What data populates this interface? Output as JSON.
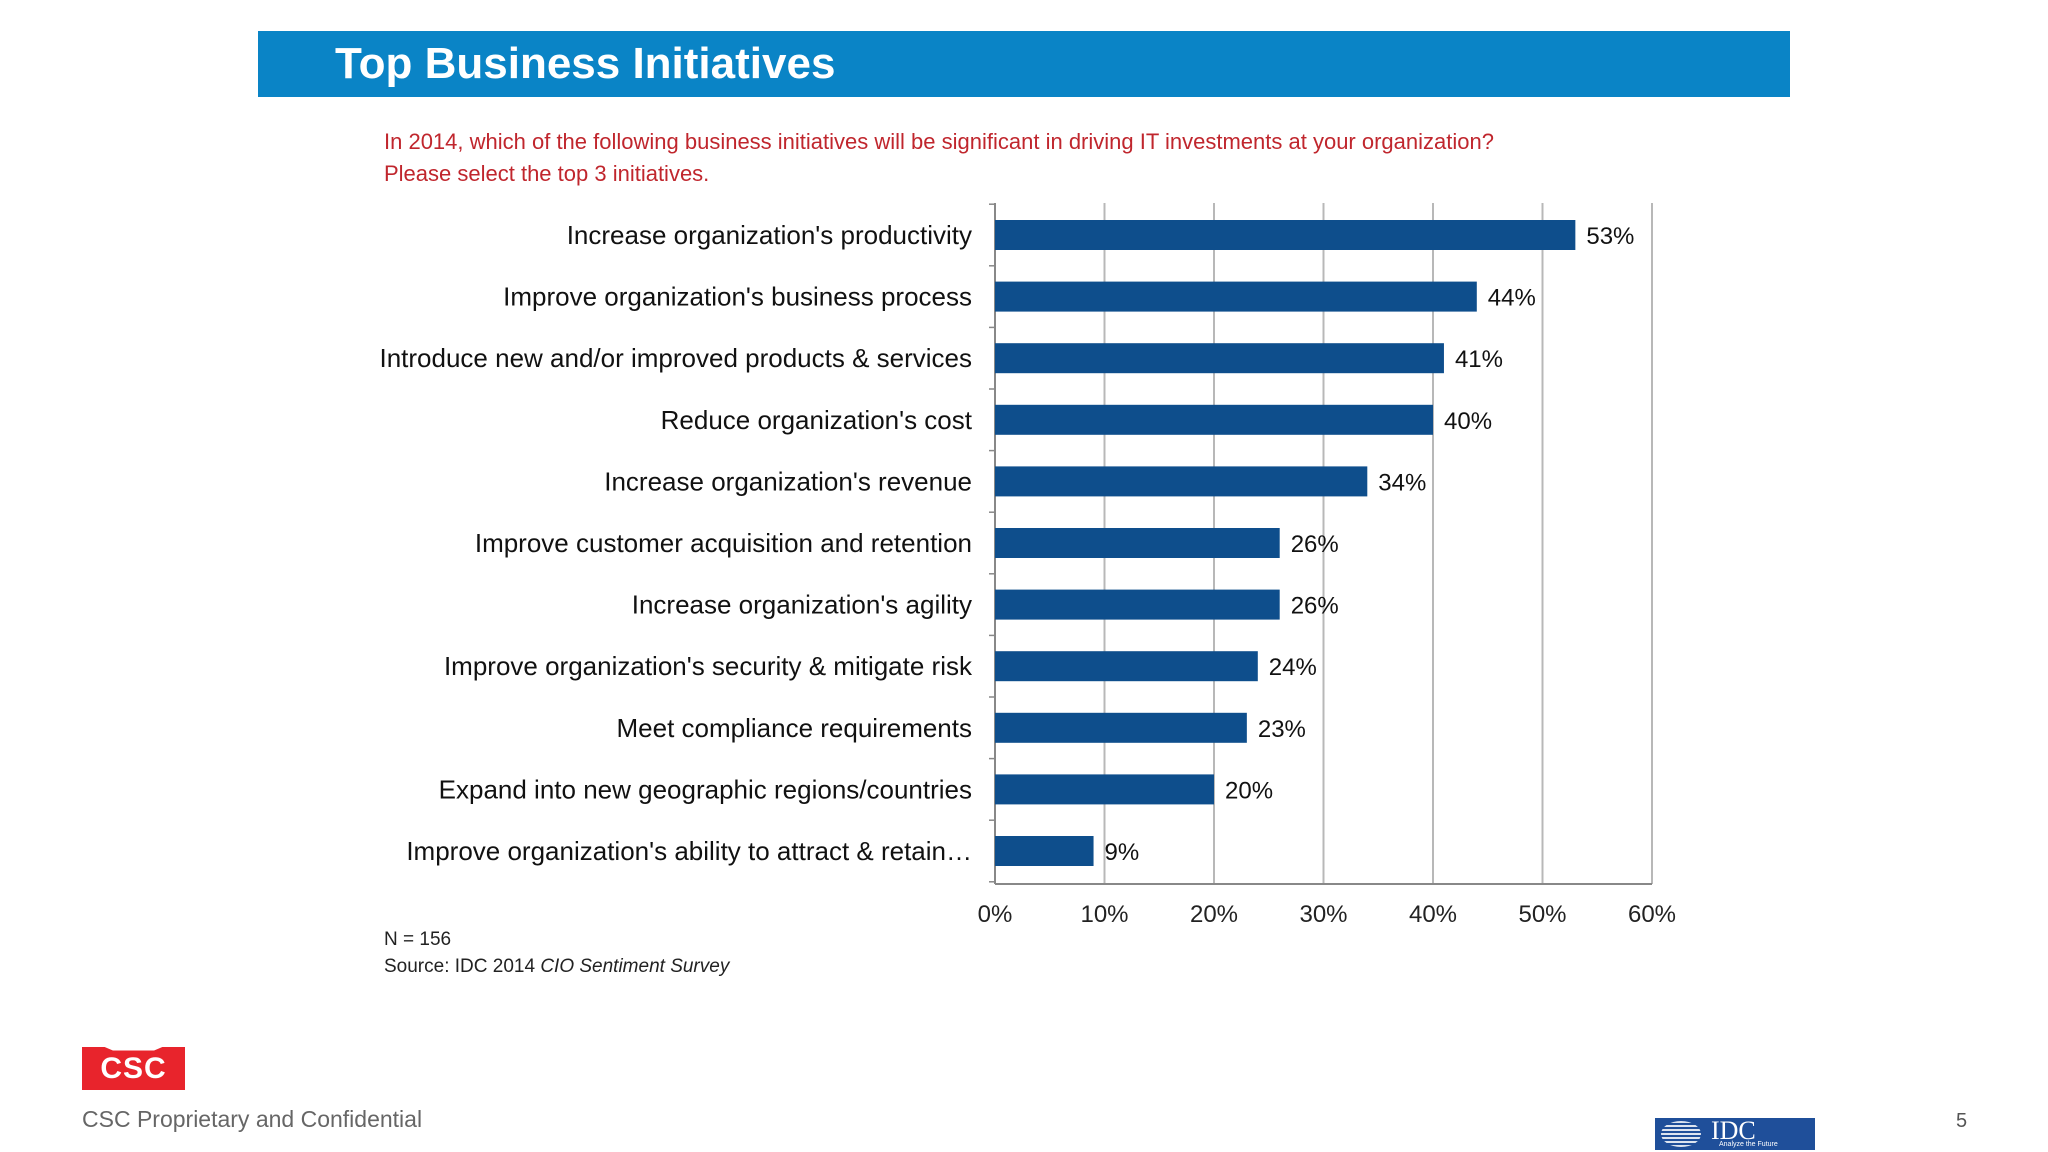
{
  "slide": {
    "title": "Top Business Initiatives",
    "question_line1": "In 2014, which of the following business initiatives will be significant in driving IT investments at your organization?",
    "question_line2": "Please select the top 3 initiatives.",
    "n_note": "N = 156",
    "source_prefix": "Source: IDC 2014 ",
    "source_title": "CIO Sentiment Survey",
    "footer": "CSC Proprietary and Confidential",
    "page_number": "5",
    "csc_logo_text": "CSC",
    "idc_logo_text": "IDC",
    "idc_tagline": "Analyze the Future"
  },
  "colors": {
    "bar": "#0e4e8c",
    "title_band": "#0a84c6",
    "question": "#c0262d",
    "gridline": "#b8b8b8"
  },
  "chart_data": {
    "type": "bar",
    "orientation": "horizontal",
    "categories": [
      "Increase organization's productivity",
      "Improve organization's business process",
      "Introduce new and/or improved products & services",
      "Reduce organization's cost",
      "Increase organization's revenue",
      "Improve customer acquisition and retention",
      "Increase organization's agility",
      "Improve organization's security & mitigate risk",
      "Meet compliance requirements",
      "Expand into new geographic regions/countries",
      "Improve organization's ability to attract & retain…"
    ],
    "values": [
      53,
      44,
      41,
      40,
      34,
      26,
      26,
      24,
      23,
      20,
      9
    ],
    "value_labels": [
      "53%",
      "44%",
      "41%",
      "40%",
      "34%",
      "26%",
      "26%",
      "24%",
      "23%",
      "20%",
      "9%"
    ],
    "xlim": [
      0,
      60
    ],
    "xticks": [
      0,
      10,
      20,
      30,
      40,
      50,
      60
    ],
    "xtick_labels": [
      "0%",
      "10%",
      "20%",
      "30%",
      "40%",
      "50%",
      "60%"
    ],
    "grid": true,
    "legend": "none"
  }
}
